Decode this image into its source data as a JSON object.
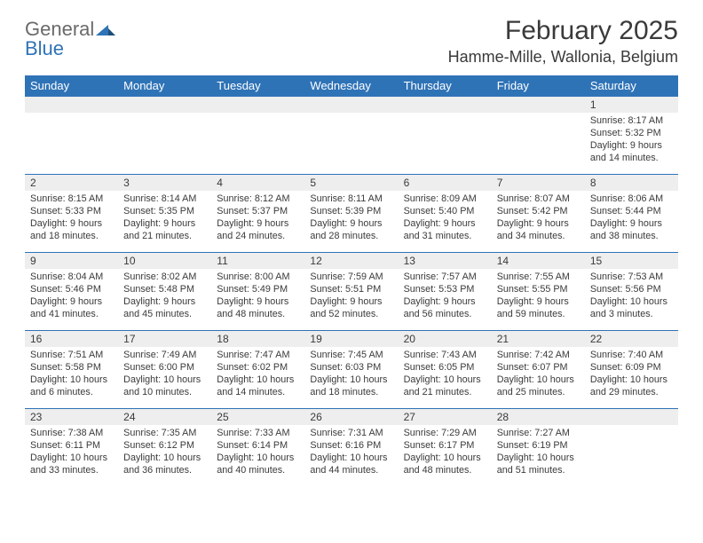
{
  "logo": {
    "line1": "General",
    "line2": "Blue"
  },
  "title": "February 2025",
  "location": "Hamme-Mille, Wallonia, Belgium",
  "colors": {
    "header_bg": "#2f73b7",
    "header_text": "#ffffff",
    "daynum_bg": "#eeeeee",
    "text": "#3a3a3a",
    "row_border": "#2f73b7"
  },
  "weekdays": [
    "Sunday",
    "Monday",
    "Tuesday",
    "Wednesday",
    "Thursday",
    "Friday",
    "Saturday"
  ],
  "weeks": [
    [
      null,
      null,
      null,
      null,
      null,
      null,
      {
        "n": "1",
        "sr": "8:17 AM",
        "ss": "5:32 PM",
        "dl": "9 hours and 14 minutes."
      }
    ],
    [
      {
        "n": "2",
        "sr": "8:15 AM",
        "ss": "5:33 PM",
        "dl": "9 hours and 18 minutes."
      },
      {
        "n": "3",
        "sr": "8:14 AM",
        "ss": "5:35 PM",
        "dl": "9 hours and 21 minutes."
      },
      {
        "n": "4",
        "sr": "8:12 AM",
        "ss": "5:37 PM",
        "dl": "9 hours and 24 minutes."
      },
      {
        "n": "5",
        "sr": "8:11 AM",
        "ss": "5:39 PM",
        "dl": "9 hours and 28 minutes."
      },
      {
        "n": "6",
        "sr": "8:09 AM",
        "ss": "5:40 PM",
        "dl": "9 hours and 31 minutes."
      },
      {
        "n": "7",
        "sr": "8:07 AM",
        "ss": "5:42 PM",
        "dl": "9 hours and 34 minutes."
      },
      {
        "n": "8",
        "sr": "8:06 AM",
        "ss": "5:44 PM",
        "dl": "9 hours and 38 minutes."
      }
    ],
    [
      {
        "n": "9",
        "sr": "8:04 AM",
        "ss": "5:46 PM",
        "dl": "9 hours and 41 minutes."
      },
      {
        "n": "10",
        "sr": "8:02 AM",
        "ss": "5:48 PM",
        "dl": "9 hours and 45 minutes."
      },
      {
        "n": "11",
        "sr": "8:00 AM",
        "ss": "5:49 PM",
        "dl": "9 hours and 48 minutes."
      },
      {
        "n": "12",
        "sr": "7:59 AM",
        "ss": "5:51 PM",
        "dl": "9 hours and 52 minutes."
      },
      {
        "n": "13",
        "sr": "7:57 AM",
        "ss": "5:53 PM",
        "dl": "9 hours and 56 minutes."
      },
      {
        "n": "14",
        "sr": "7:55 AM",
        "ss": "5:55 PM",
        "dl": "9 hours and 59 minutes."
      },
      {
        "n": "15",
        "sr": "7:53 AM",
        "ss": "5:56 PM",
        "dl": "10 hours and 3 minutes."
      }
    ],
    [
      {
        "n": "16",
        "sr": "7:51 AM",
        "ss": "5:58 PM",
        "dl": "10 hours and 6 minutes."
      },
      {
        "n": "17",
        "sr": "7:49 AM",
        "ss": "6:00 PM",
        "dl": "10 hours and 10 minutes."
      },
      {
        "n": "18",
        "sr": "7:47 AM",
        "ss": "6:02 PM",
        "dl": "10 hours and 14 minutes."
      },
      {
        "n": "19",
        "sr": "7:45 AM",
        "ss": "6:03 PM",
        "dl": "10 hours and 18 minutes."
      },
      {
        "n": "20",
        "sr": "7:43 AM",
        "ss": "6:05 PM",
        "dl": "10 hours and 21 minutes."
      },
      {
        "n": "21",
        "sr": "7:42 AM",
        "ss": "6:07 PM",
        "dl": "10 hours and 25 minutes."
      },
      {
        "n": "22",
        "sr": "7:40 AM",
        "ss": "6:09 PM",
        "dl": "10 hours and 29 minutes."
      }
    ],
    [
      {
        "n": "23",
        "sr": "7:38 AM",
        "ss": "6:11 PM",
        "dl": "10 hours and 33 minutes."
      },
      {
        "n": "24",
        "sr": "7:35 AM",
        "ss": "6:12 PM",
        "dl": "10 hours and 36 minutes."
      },
      {
        "n": "25",
        "sr": "7:33 AM",
        "ss": "6:14 PM",
        "dl": "10 hours and 40 minutes."
      },
      {
        "n": "26",
        "sr": "7:31 AM",
        "ss": "6:16 PM",
        "dl": "10 hours and 44 minutes."
      },
      {
        "n": "27",
        "sr": "7:29 AM",
        "ss": "6:17 PM",
        "dl": "10 hours and 48 minutes."
      },
      {
        "n": "28",
        "sr": "7:27 AM",
        "ss": "6:19 PM",
        "dl": "10 hours and 51 minutes."
      },
      null
    ]
  ],
  "labels": {
    "sunrise": "Sunrise: ",
    "sunset": "Sunset: ",
    "daylight": "Daylight: "
  }
}
